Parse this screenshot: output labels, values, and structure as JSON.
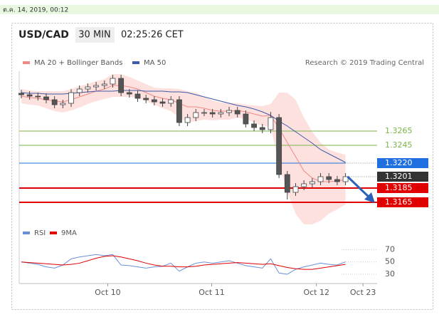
{
  "header": {
    "timestamp": "ต.ค. 14, 2019, 00:12"
  },
  "chart_data": {
    "type": "candlestick",
    "title": "USD/CAD",
    "interval": "30 MIN",
    "time": "02:25:26 CET",
    "credit": "Research © 2019 Trading Central",
    "xlim": [
      -0.25,
      42.8
    ],
    "xticks": [
      {
        "value": 10.4,
        "label": "Oct 10"
      },
      {
        "value": 22.9,
        "label": "Oct 11"
      },
      {
        "value": 35.5,
        "label": "Oct 12"
      },
      {
        "value": 41.1,
        "label": "Oct 23"
      }
    ],
    "ylim": [
      1.3139,
      1.3349
    ],
    "open": [
      1.3318,
      1.3316,
      1.3314,
      1.3313,
      1.3309,
      1.3302,
      1.3304,
      1.3319,
      1.3324,
      1.3327,
      1.3329,
      1.3331,
      1.3339,
      1.3319,
      1.3317,
      1.3311,
      1.3309,
      1.3306,
      1.3304,
      1.3309,
      1.3277,
      1.3284,
      1.3291,
      1.3291,
      1.3289,
      1.3291,
      1.3294,
      1.3289,
      1.3275,
      1.327,
      1.3267,
      1.3284,
      1.3204,
      1.3179,
      1.3187,
      1.3191,
      1.3194,
      1.3201,
      1.3197,
      1.3194
    ],
    "high": [
      1.3323,
      1.3321,
      1.3319,
      1.3318,
      1.3314,
      1.3309,
      1.3324,
      1.3329,
      1.3332,
      1.3334,
      1.3336,
      1.3344,
      1.3344,
      1.3324,
      1.3322,
      1.3316,
      1.3314,
      1.3311,
      1.3314,
      1.3314,
      1.3289,
      1.3296,
      1.3296,
      1.3296,
      1.3296,
      1.3299,
      1.3299,
      1.3294,
      1.328,
      1.3275,
      1.3292,
      1.3289,
      1.3209,
      1.3192,
      1.3196,
      1.3199,
      1.3206,
      1.3206,
      1.3202,
      1.3206
    ],
    "low": [
      1.3311,
      1.3309,
      1.3308,
      1.3304,
      1.3297,
      1.3297,
      1.3299,
      1.3314,
      1.3319,
      1.3322,
      1.3324,
      1.3326,
      1.3314,
      1.3312,
      1.3306,
      1.3304,
      1.3301,
      1.3299,
      1.3299,
      1.3272,
      1.3272,
      1.3279,
      1.3286,
      1.3284,
      1.3284,
      1.3286,
      1.3284,
      1.327,
      1.3265,
      1.3262,
      1.3262,
      1.3199,
      1.3169,
      1.3174,
      1.3182,
      1.3186,
      1.3189,
      1.3192,
      1.3189,
      1.3189
    ],
    "close": [
      1.3316,
      1.3314,
      1.3313,
      1.3309,
      1.3302,
      1.3304,
      1.3319,
      1.3324,
      1.3327,
      1.3329,
      1.3331,
      1.3339,
      1.3319,
      1.3317,
      1.3311,
      1.3309,
      1.3306,
      1.3304,
      1.3309,
      1.3277,
      1.3284,
      1.3291,
      1.3291,
      1.3289,
      1.3291,
      1.3294,
      1.3289,
      1.3275,
      1.327,
      1.3267,
      1.3284,
      1.3204,
      1.3179,
      1.3187,
      1.3191,
      1.3194,
      1.3201,
      1.3197,
      1.3194,
      1.3201
    ],
    "series": [
      {
        "name": "MA 20 + Bollinger Bands",
        "color": "#f08a86",
        "band_color": "#fde1df",
        "values": [
          1.3314,
          1.3312,
          1.3311,
          1.3309,
          1.3307,
          1.3306,
          1.3309,
          1.3313,
          1.3317,
          1.3321,
          1.3324,
          1.3329,
          1.3329,
          1.3327,
          1.3324,
          1.3319,
          1.3314,
          1.3311,
          1.3309,
          1.3304,
          1.3299,
          1.3299,
          1.3297,
          1.3294,
          1.3293,
          1.3293,
          1.3294,
          1.3292,
          1.3289,
          1.3286,
          1.3287,
          1.3269,
          1.3249,
          1.3229,
          1.3209,
          1.3199,
          1.3194,
          1.3194,
          1.3195,
          1.3197
        ],
        "upper": [
          1.3324,
          1.3322,
          1.3321,
          1.3321,
          1.3321,
          1.3321,
          1.3324,
          1.3328,
          1.3331,
          1.3335,
          1.3338,
          1.3345,
          1.3345,
          1.3341,
          1.3336,
          1.3331,
          1.3326,
          1.3325,
          1.3325,
          1.3324,
          1.3321,
          1.3319,
          1.3313,
          1.3308,
          1.3305,
          1.3305,
          1.3304,
          1.3302,
          1.3301,
          1.33,
          1.3303,
          1.3319,
          1.3319,
          1.3309,
          1.3284,
          1.3264,
          1.3249,
          1.3239,
          1.3235,
          1.3232
        ],
        "lower": [
          1.3304,
          1.3302,
          1.3301,
          1.3297,
          1.3293,
          1.3291,
          1.3294,
          1.3298,
          1.3303,
          1.3307,
          1.331,
          1.3313,
          1.3313,
          1.3313,
          1.3312,
          1.3307,
          1.3302,
          1.3297,
          1.3293,
          1.3284,
          1.3277,
          1.3279,
          1.3281,
          1.328,
          1.3281,
          1.3281,
          1.3284,
          1.3282,
          1.3277,
          1.3272,
          1.3271,
          1.3219,
          1.3179,
          1.3149,
          1.3134,
          1.3134,
          1.3139,
          1.3149,
          1.3155,
          1.3162
        ]
      },
      {
        "name": "MA 50",
        "color": "#3d5ba8",
        "values": [
          1.3319,
          1.3318,
          1.3318,
          1.3317,
          1.3317,
          1.3317,
          1.3318,
          1.3319,
          1.332,
          1.3321,
          1.3321,
          1.3321,
          1.3322,
          1.3322,
          1.3322,
          1.3321,
          1.3321,
          1.3321,
          1.332,
          1.332,
          1.3319,
          1.3316,
          1.3313,
          1.331,
          1.3307,
          1.3304,
          1.3301,
          1.3299,
          1.3296,
          1.3292,
          1.3287,
          1.3279,
          1.3272,
          1.3264,
          1.3256,
          1.3248,
          1.3239,
          1.3233,
          1.3227,
          1.3221
        ]
      }
    ],
    "levels": [
      {
        "value": 1.3265,
        "label": "1.3265",
        "color": "#7ab648"
      },
      {
        "value": 1.3245,
        "label": "1.3245",
        "color": "#7ab648"
      },
      {
        "value": 1.322,
        "label": "1.3220",
        "color": "#1f6fe0"
      },
      {
        "value": 1.3201,
        "label": "1.3201",
        "color": "#333333"
      },
      {
        "value": 1.3185,
        "label": "1.3185",
        "color": "#e00000"
      },
      {
        "value": 1.3165,
        "label": "1.3165",
        "color": "#e00000"
      }
    ],
    "rsi": {
      "ylim": [
        15,
        82
      ],
      "yticks": [
        70,
        50,
        30
      ],
      "series": [
        {
          "name": "RSI",
          "color": "#6a8fd8",
          "values": [
            50,
            48,
            46,
            42,
            40,
            45,
            55,
            58,
            60,
            62,
            60,
            62,
            45,
            44,
            42,
            40,
            42,
            43,
            48,
            35,
            42,
            48,
            50,
            48,
            50,
            52,
            48,
            44,
            42,
            40,
            55,
            32,
            30,
            38,
            42,
            45,
            48,
            46,
            45,
            50
          ]
        },
        {
          "name": "9MA",
          "color": "#e00000",
          "values": [
            50,
            49,
            48,
            47,
            46,
            45,
            46,
            48,
            52,
            56,
            59,
            60,
            58,
            55,
            52,
            48,
            45,
            43,
            43,
            42,
            42,
            43,
            45,
            46,
            47,
            48,
            49,
            48,
            47,
            46,
            47,
            44,
            41,
            39,
            38,
            38,
            40,
            42,
            44,
            46
          ]
        }
      ]
    }
  }
}
